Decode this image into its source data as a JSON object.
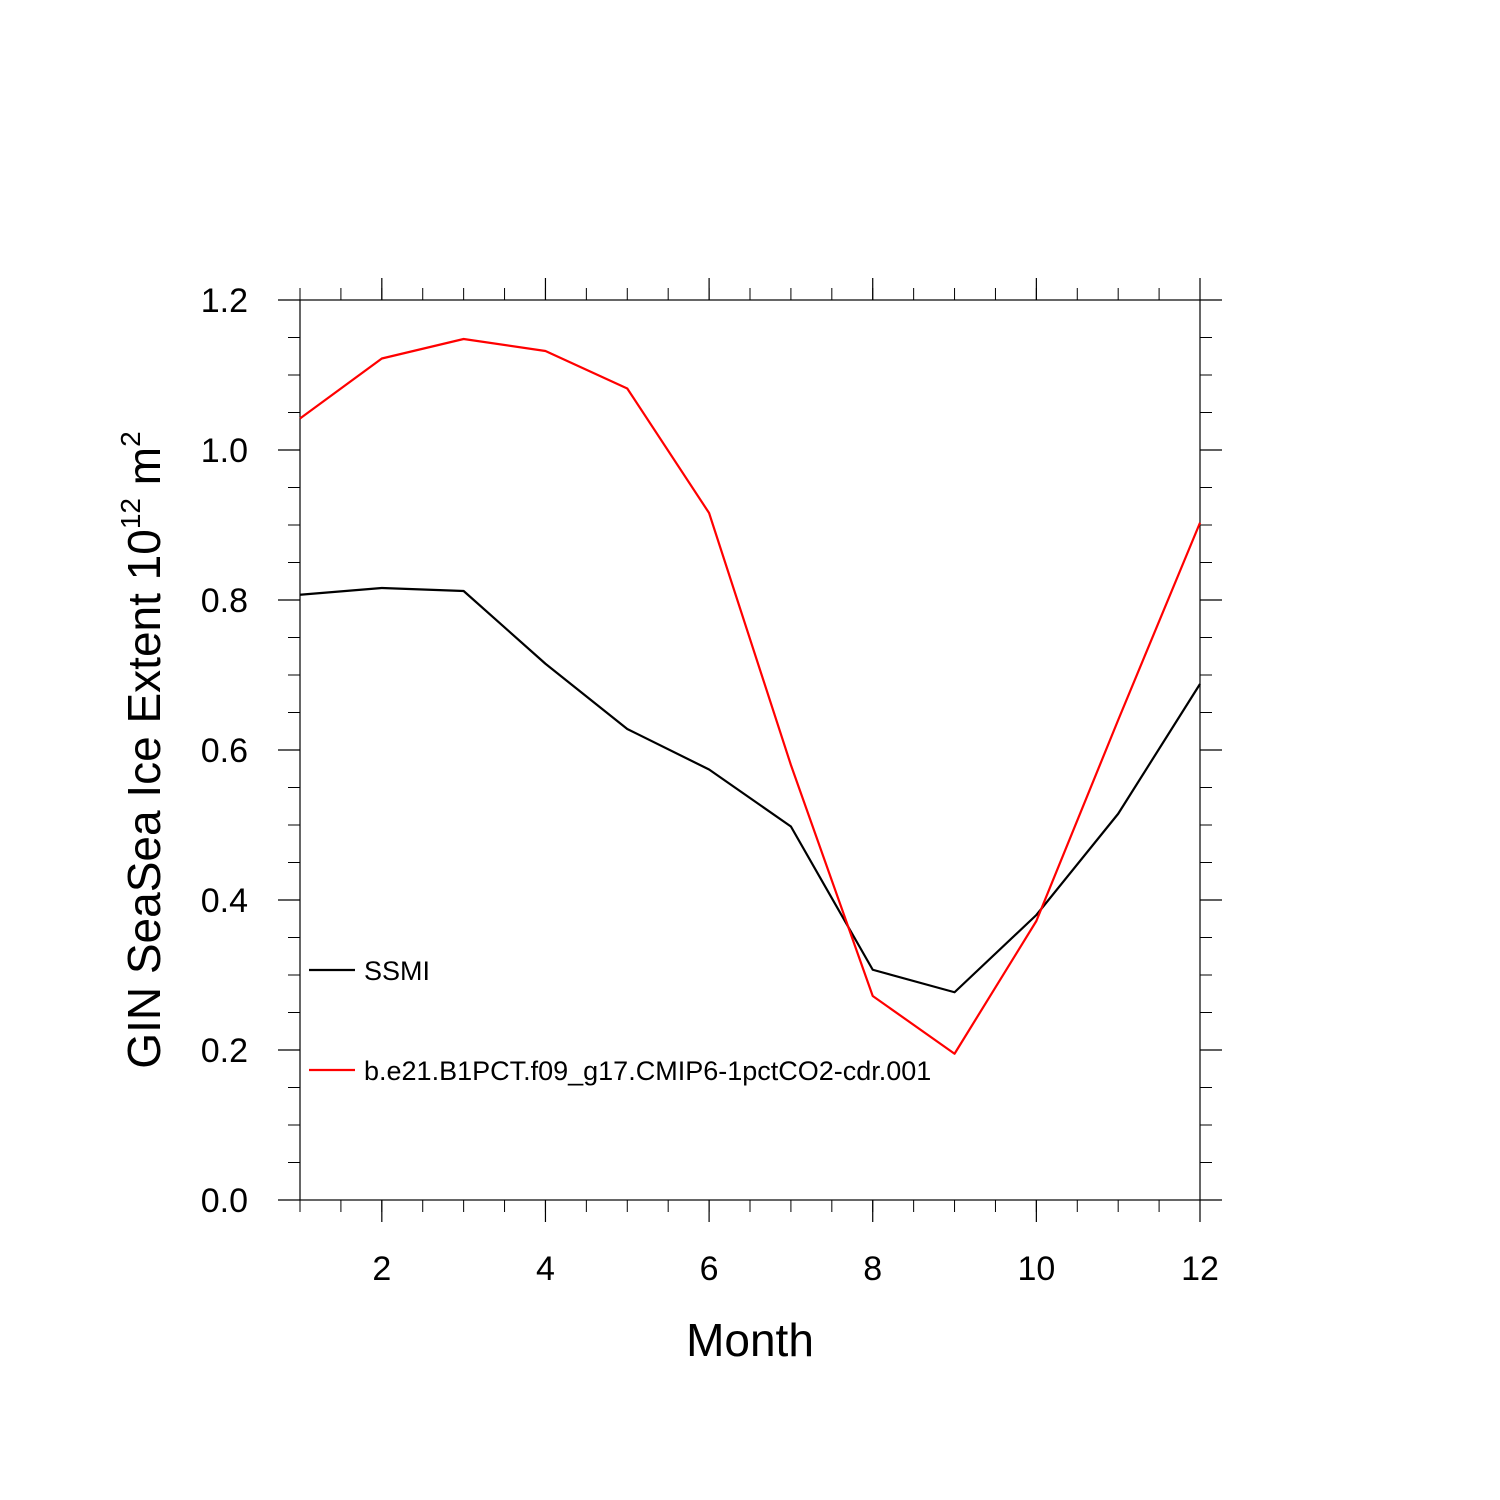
{
  "chart_data": {
    "type": "line",
    "xlabel": "Month",
    "ylabel": "GIN SeaSea Ice Extent 10",
    "ylabel_sup": "12",
    "ylabel_unit": " m",
    "ylabel_unit_sup": "2",
    "xlim": [
      1,
      12
    ],
    "ylim": [
      0.0,
      1.2
    ],
    "xticks": [
      2,
      4,
      6,
      8,
      10,
      12
    ],
    "xtick_labels": [
      "2",
      "4",
      "6",
      "8",
      "10",
      "12"
    ],
    "yticks": [
      0.0,
      0.2,
      0.4,
      0.6,
      0.8,
      1.0,
      1.2
    ],
    "ytick_labels": [
      "0.0",
      "0.2",
      "0.4",
      "0.6",
      "0.8",
      "1.0",
      "1.2"
    ],
    "x": [
      1,
      2,
      3,
      4,
      5,
      6,
      7,
      8,
      9,
      10,
      11,
      12
    ],
    "legend_position": "lower-left",
    "series": [
      {
        "name": "SSMI",
        "color": "#000000",
        "values": [
          0.807,
          0.816,
          0.812,
          0.715,
          0.628,
          0.574,
          0.498,
          0.307,
          0.277,
          0.38,
          0.515,
          0.688
        ]
      },
      {
        "name": "b.e21.B1PCT.f09_g17.CMIP6-1pctCO2-cdr.001",
        "color": "#ff0000",
        "values": [
          1.042,
          1.122,
          1.148,
          1.132,
          1.082,
          0.916,
          0.58,
          0.272,
          0.195,
          0.372,
          0.64,
          0.903
        ]
      }
    ]
  }
}
